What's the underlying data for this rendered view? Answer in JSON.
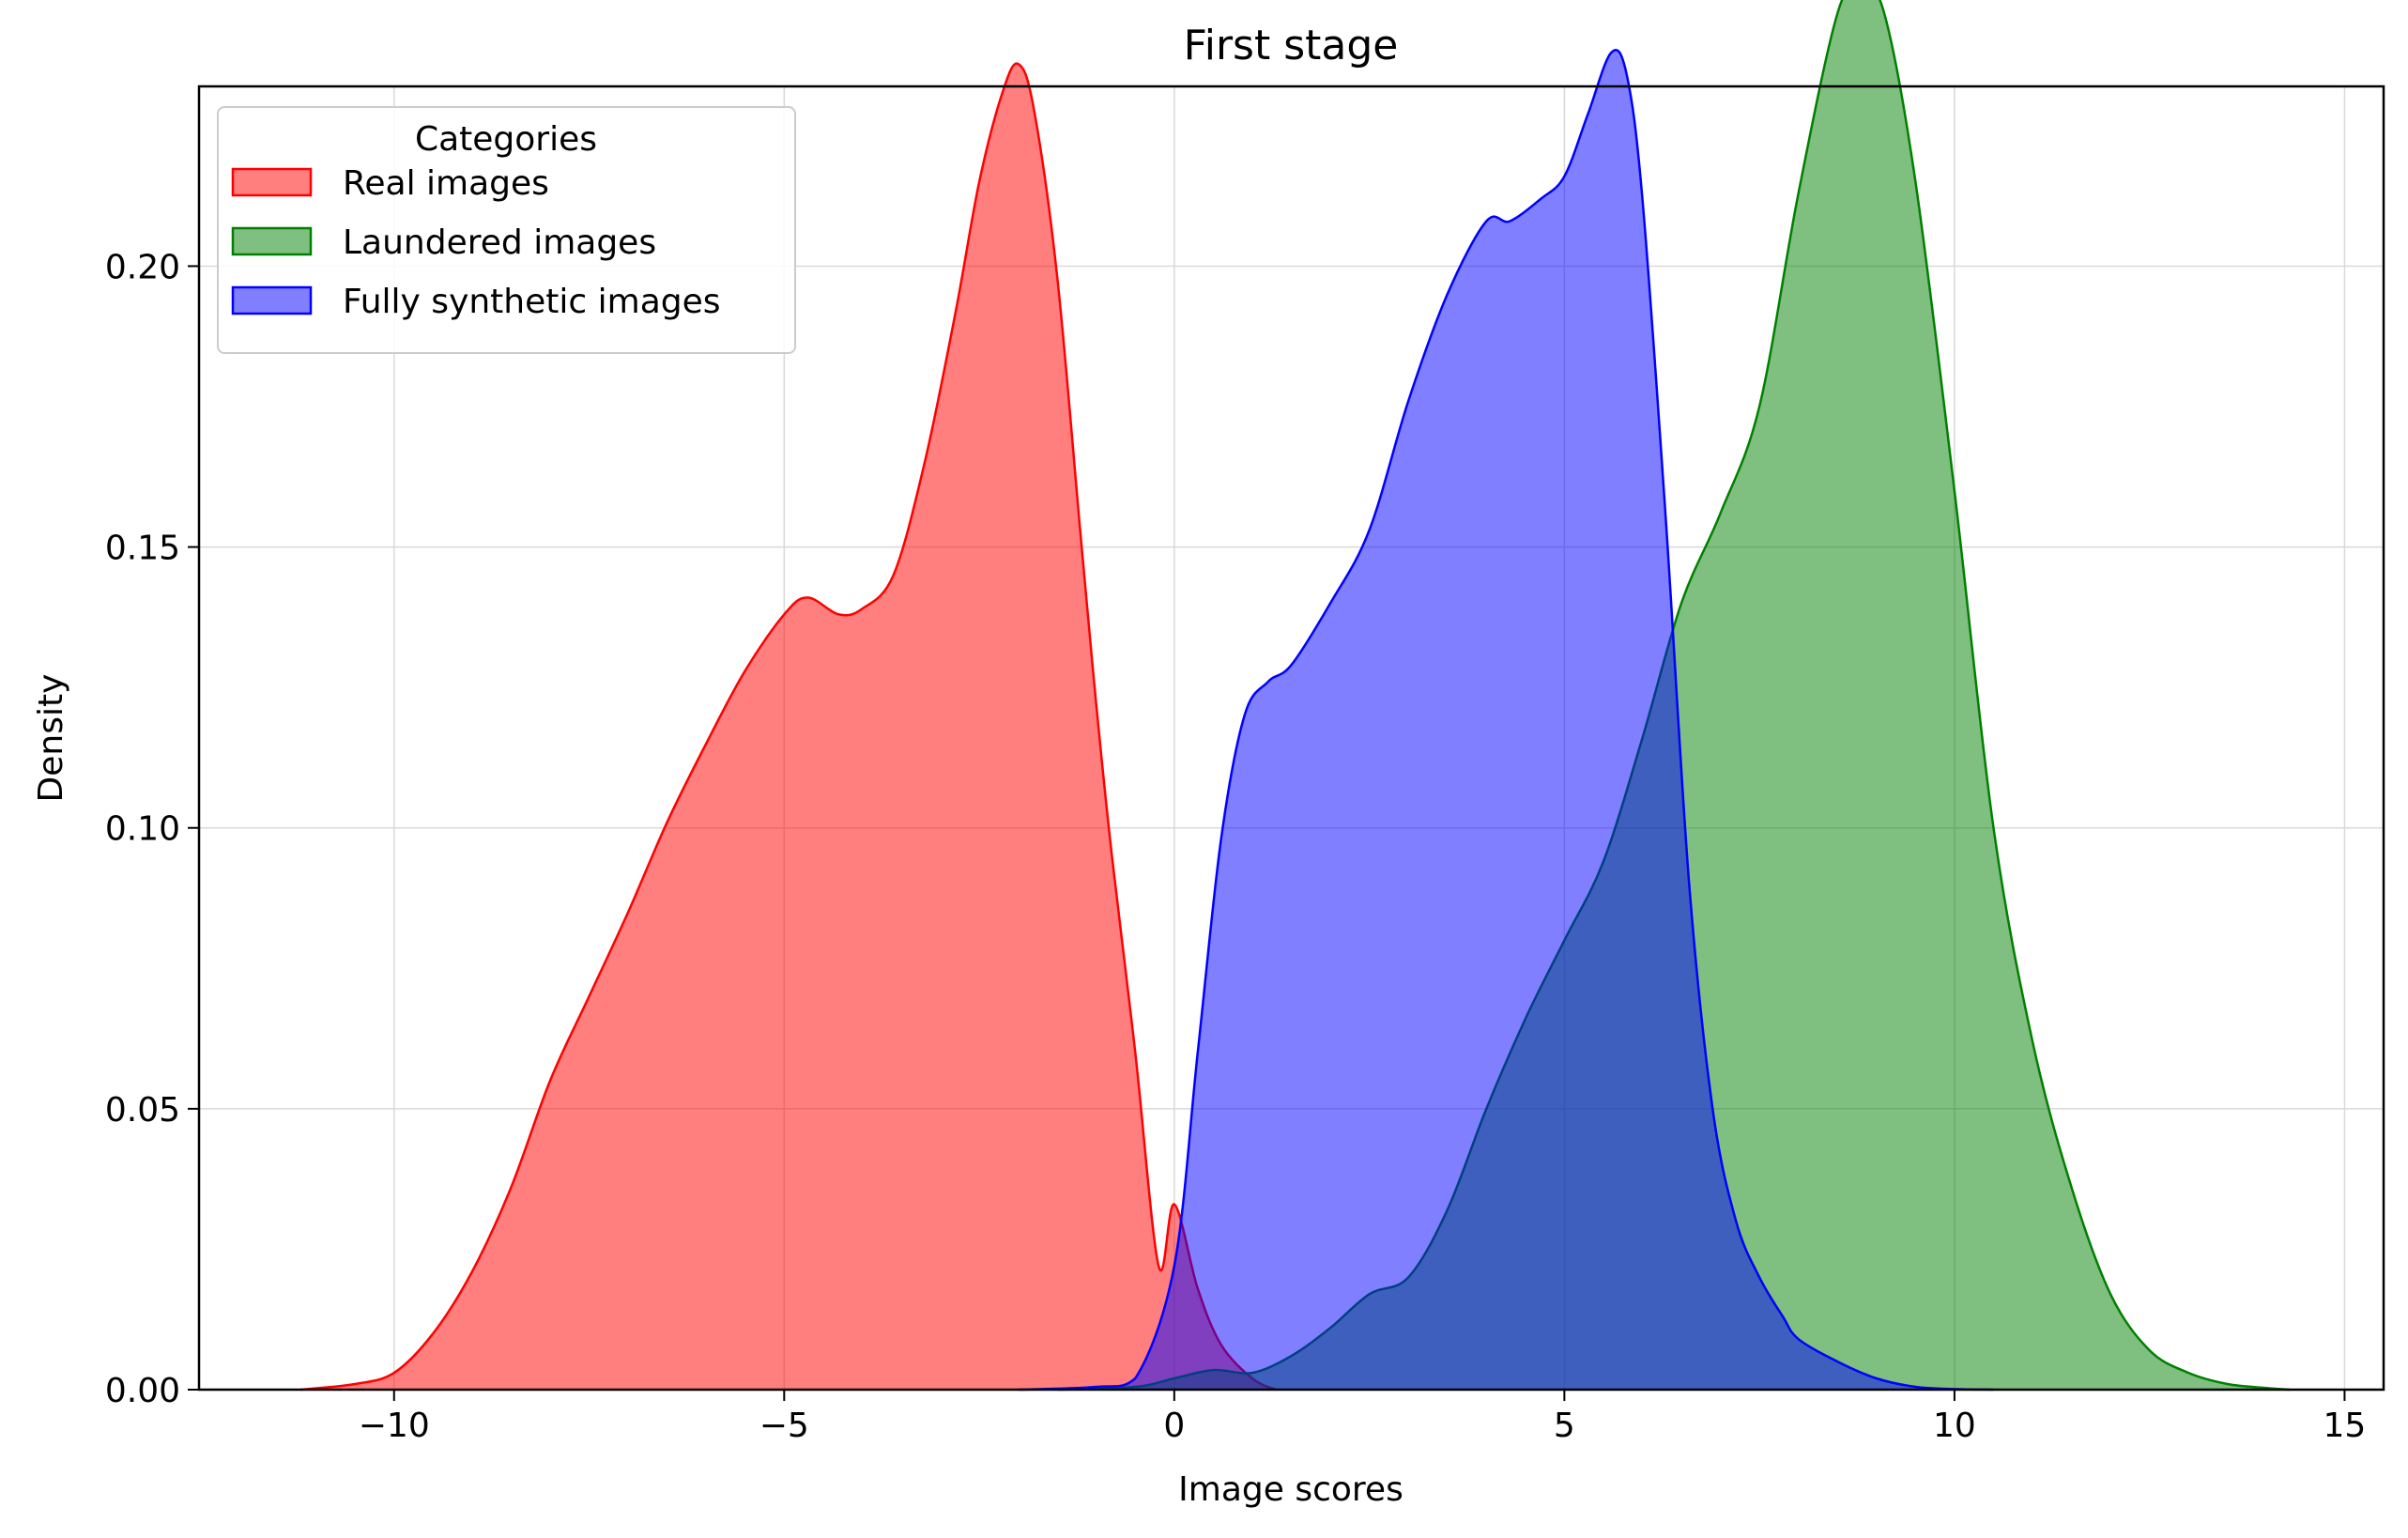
{
  "chart_data": {
    "type": "area",
    "title": "First stage",
    "xlabel": "Image scores",
    "ylabel": "Density",
    "xlim": [
      -12.5,
      15.5
    ],
    "ylim": [
      0,
      0.232
    ],
    "xticks": [
      -10,
      -5,
      0,
      5,
      10,
      15
    ],
    "xtick_labels": [
      "−10",
      "−5",
      "0",
      "5",
      "10",
      "15"
    ],
    "yticks": [
      0,
      0.05,
      0.1,
      0.15,
      0.2
    ],
    "ytick_labels": [
      "0.00",
      "0.05",
      "0.10",
      "0.15",
      "0.20"
    ],
    "grid": true,
    "legend": {
      "title": "Categories",
      "placement": "top-left"
    },
    "series": [
      {
        "name": "Real images",
        "color": "#ff0000",
        "fill_opacity": 0.5,
        "x": [
          -11.2,
          -10.5,
          -10.0,
          -9.5,
          -9.0,
          -8.5,
          -8.0,
          -7.5,
          -7.0,
          -6.5,
          -6.0,
          -5.5,
          -5.0,
          -4.7,
          -4.3,
          -4.0,
          -3.6,
          -3.2,
          -2.8,
          -2.5,
          -2.2,
          -2.0,
          -1.8,
          -1.5,
          -1.2,
          -1.0,
          -0.8,
          -0.5,
          -0.2,
          0.0,
          0.3,
          0.6,
          1.0,
          1.3
        ],
        "y": [
          0.0,
          0.001,
          0.003,
          0.01,
          0.021,
          0.036,
          0.055,
          0.07,
          0.085,
          0.101,
          0.115,
          0.128,
          0.138,
          0.141,
          0.138,
          0.139,
          0.145,
          0.165,
          0.192,
          0.215,
          0.231,
          0.236,
          0.228,
          0.198,
          0.152,
          0.122,
          0.095,
          0.06,
          0.022,
          0.033,
          0.018,
          0.008,
          0.002,
          0.0
        ]
      },
      {
        "name": "Laundered images",
        "color": "#008000",
        "fill_opacity": 0.5,
        "x": [
          -1.5,
          -0.5,
          0.0,
          0.5,
          1.0,
          1.5,
          2.0,
          2.5,
          3.0,
          3.5,
          4.0,
          4.5,
          5.0,
          5.5,
          6.0,
          6.5,
          7.0,
          7.5,
          8.0,
          8.5,
          8.8,
          9.1,
          9.5,
          10.0,
          10.5,
          11.0,
          11.5,
          12.0,
          12.5,
          13.0,
          13.5,
          14.0,
          14.3
        ],
        "y": [
          0.0,
          0.0005,
          0.002,
          0.0035,
          0.003,
          0.006,
          0.011,
          0.017,
          0.02,
          0.032,
          0.05,
          0.066,
          0.08,
          0.094,
          0.116,
          0.14,
          0.156,
          0.175,
          0.213,
          0.245,
          0.25,
          0.245,
          0.215,
          0.16,
          0.1,
          0.062,
          0.036,
          0.017,
          0.007,
          0.003,
          0.001,
          0.0003,
          0.0
        ]
      },
      {
        "name": "Fully synthetic images",
        "color": "#0000ff",
        "fill_opacity": 0.5,
        "x": [
          -2.0,
          -1.0,
          -0.5,
          0.0,
          0.3,
          0.6,
          0.9,
          1.2,
          1.5,
          2.0,
          2.5,
          3.0,
          3.5,
          4.0,
          4.3,
          4.7,
          5.0,
          5.3,
          5.6,
          5.8,
          6.0,
          6.3,
          6.6,
          6.9,
          7.2,
          7.5,
          7.8,
          8.0,
          8.5,
          9.0,
          9.5,
          10.0,
          10.5
        ],
        "y": [
          0.0,
          0.0005,
          0.002,
          0.022,
          0.06,
          0.098,
          0.12,
          0.126,
          0.129,
          0.14,
          0.153,
          0.176,
          0.195,
          0.208,
          0.208,
          0.212,
          0.216,
          0.227,
          0.238,
          0.234,
          0.212,
          0.155,
          0.09,
          0.05,
          0.03,
          0.02,
          0.013,
          0.009,
          0.005,
          0.002,
          0.0005,
          0.0001,
          0.0
        ]
      }
    ]
  }
}
